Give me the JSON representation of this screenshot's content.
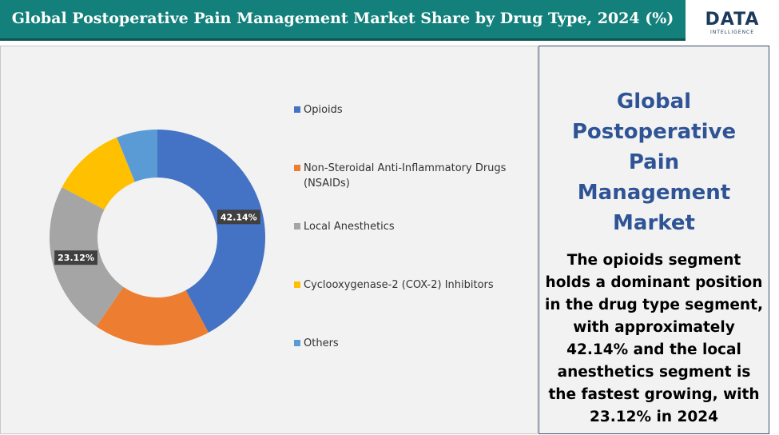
{
  "header": {
    "title": "Global Postoperative Pain Management Market Share by Drug Type, 2024 (%)",
    "logo": "DATA",
    "logo_sub": "INTELLIGENCE"
  },
  "chart_data": {
    "type": "donut",
    "categories": [
      "Opioids",
      "Non-Steroidal Anti-Inflammatory Drugs (NSAIDs)",
      "Local Anesthetics",
      "Cyclooxygenase-2 (COX-2) Inhibitors",
      "Others"
    ],
    "values": [
      42.14,
      17.44,
      23.12,
      11.16,
      6.14
    ],
    "value_labels": [
      "42.14%",
      null,
      "23.12%",
      null,
      null
    ],
    "colors": [
      "#4472c4",
      "#ed7d31",
      "#a5a5a5",
      "#ffc000",
      "#5b9bd5"
    ]
  },
  "side_panel": {
    "title": "Global Postoperative Pain Management Market",
    "text": "The opioids segment holds a dominant position in the drug type segment, with approximately 42.14% and the local anesthetics segment is the fastest growing, with 23.12% in 2024"
  }
}
